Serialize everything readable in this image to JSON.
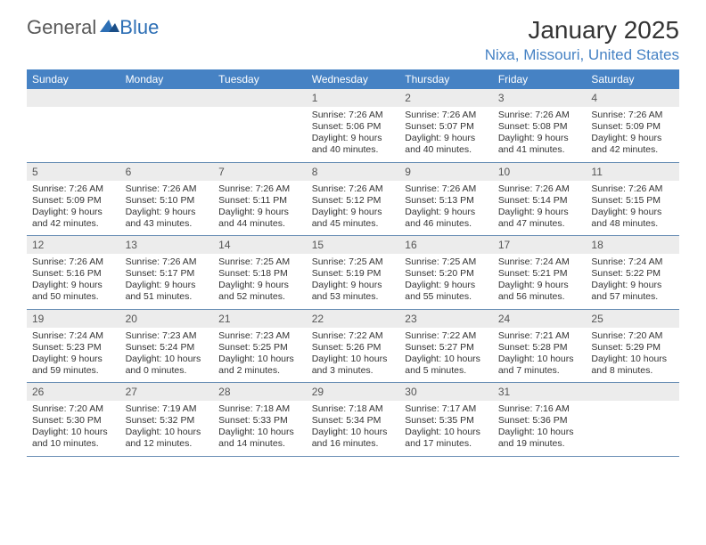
{
  "brand": {
    "part1": "General",
    "part2": "Blue"
  },
  "title": "January 2025",
  "location": "Nixa, Missouri, United States",
  "colors": {
    "header_bg": "#4682c4",
    "header_fg": "#ffffff",
    "daynum_bg": "#ececec",
    "rule": "#6a8fb5",
    "brand_blue": "#2d6fb5",
    "text": "#333333"
  },
  "daysOfWeek": [
    "Sunday",
    "Monday",
    "Tuesday",
    "Wednesday",
    "Thursday",
    "Friday",
    "Saturday"
  ],
  "weeks": [
    [
      {
        "n": "",
        "lines": []
      },
      {
        "n": "",
        "lines": []
      },
      {
        "n": "",
        "lines": []
      },
      {
        "n": "1",
        "lines": [
          "Sunrise: 7:26 AM",
          "Sunset: 5:06 PM",
          "Daylight: 9 hours",
          "and 40 minutes."
        ]
      },
      {
        "n": "2",
        "lines": [
          "Sunrise: 7:26 AM",
          "Sunset: 5:07 PM",
          "Daylight: 9 hours",
          "and 40 minutes."
        ]
      },
      {
        "n": "3",
        "lines": [
          "Sunrise: 7:26 AM",
          "Sunset: 5:08 PM",
          "Daylight: 9 hours",
          "and 41 minutes."
        ]
      },
      {
        "n": "4",
        "lines": [
          "Sunrise: 7:26 AM",
          "Sunset: 5:09 PM",
          "Daylight: 9 hours",
          "and 42 minutes."
        ]
      }
    ],
    [
      {
        "n": "5",
        "lines": [
          "Sunrise: 7:26 AM",
          "Sunset: 5:09 PM",
          "Daylight: 9 hours",
          "and 42 minutes."
        ]
      },
      {
        "n": "6",
        "lines": [
          "Sunrise: 7:26 AM",
          "Sunset: 5:10 PM",
          "Daylight: 9 hours",
          "and 43 minutes."
        ]
      },
      {
        "n": "7",
        "lines": [
          "Sunrise: 7:26 AM",
          "Sunset: 5:11 PM",
          "Daylight: 9 hours",
          "and 44 minutes."
        ]
      },
      {
        "n": "8",
        "lines": [
          "Sunrise: 7:26 AM",
          "Sunset: 5:12 PM",
          "Daylight: 9 hours",
          "and 45 minutes."
        ]
      },
      {
        "n": "9",
        "lines": [
          "Sunrise: 7:26 AM",
          "Sunset: 5:13 PM",
          "Daylight: 9 hours",
          "and 46 minutes."
        ]
      },
      {
        "n": "10",
        "lines": [
          "Sunrise: 7:26 AM",
          "Sunset: 5:14 PM",
          "Daylight: 9 hours",
          "and 47 minutes."
        ]
      },
      {
        "n": "11",
        "lines": [
          "Sunrise: 7:26 AM",
          "Sunset: 5:15 PM",
          "Daylight: 9 hours",
          "and 48 minutes."
        ]
      }
    ],
    [
      {
        "n": "12",
        "lines": [
          "Sunrise: 7:26 AM",
          "Sunset: 5:16 PM",
          "Daylight: 9 hours",
          "and 50 minutes."
        ]
      },
      {
        "n": "13",
        "lines": [
          "Sunrise: 7:26 AM",
          "Sunset: 5:17 PM",
          "Daylight: 9 hours",
          "and 51 minutes."
        ]
      },
      {
        "n": "14",
        "lines": [
          "Sunrise: 7:25 AM",
          "Sunset: 5:18 PM",
          "Daylight: 9 hours",
          "and 52 minutes."
        ]
      },
      {
        "n": "15",
        "lines": [
          "Sunrise: 7:25 AM",
          "Sunset: 5:19 PM",
          "Daylight: 9 hours",
          "and 53 minutes."
        ]
      },
      {
        "n": "16",
        "lines": [
          "Sunrise: 7:25 AM",
          "Sunset: 5:20 PM",
          "Daylight: 9 hours",
          "and 55 minutes."
        ]
      },
      {
        "n": "17",
        "lines": [
          "Sunrise: 7:24 AM",
          "Sunset: 5:21 PM",
          "Daylight: 9 hours",
          "and 56 minutes."
        ]
      },
      {
        "n": "18",
        "lines": [
          "Sunrise: 7:24 AM",
          "Sunset: 5:22 PM",
          "Daylight: 9 hours",
          "and 57 minutes."
        ]
      }
    ],
    [
      {
        "n": "19",
        "lines": [
          "Sunrise: 7:24 AM",
          "Sunset: 5:23 PM",
          "Daylight: 9 hours",
          "and 59 minutes."
        ]
      },
      {
        "n": "20",
        "lines": [
          "Sunrise: 7:23 AM",
          "Sunset: 5:24 PM",
          "Daylight: 10 hours",
          "and 0 minutes."
        ]
      },
      {
        "n": "21",
        "lines": [
          "Sunrise: 7:23 AM",
          "Sunset: 5:25 PM",
          "Daylight: 10 hours",
          "and 2 minutes."
        ]
      },
      {
        "n": "22",
        "lines": [
          "Sunrise: 7:22 AM",
          "Sunset: 5:26 PM",
          "Daylight: 10 hours",
          "and 3 minutes."
        ]
      },
      {
        "n": "23",
        "lines": [
          "Sunrise: 7:22 AM",
          "Sunset: 5:27 PM",
          "Daylight: 10 hours",
          "and 5 minutes."
        ]
      },
      {
        "n": "24",
        "lines": [
          "Sunrise: 7:21 AM",
          "Sunset: 5:28 PM",
          "Daylight: 10 hours",
          "and 7 minutes."
        ]
      },
      {
        "n": "25",
        "lines": [
          "Sunrise: 7:20 AM",
          "Sunset: 5:29 PM",
          "Daylight: 10 hours",
          "and 8 minutes."
        ]
      }
    ],
    [
      {
        "n": "26",
        "lines": [
          "Sunrise: 7:20 AM",
          "Sunset: 5:30 PM",
          "Daylight: 10 hours",
          "and 10 minutes."
        ]
      },
      {
        "n": "27",
        "lines": [
          "Sunrise: 7:19 AM",
          "Sunset: 5:32 PM",
          "Daylight: 10 hours",
          "and 12 minutes."
        ]
      },
      {
        "n": "28",
        "lines": [
          "Sunrise: 7:18 AM",
          "Sunset: 5:33 PM",
          "Daylight: 10 hours",
          "and 14 minutes."
        ]
      },
      {
        "n": "29",
        "lines": [
          "Sunrise: 7:18 AM",
          "Sunset: 5:34 PM",
          "Daylight: 10 hours",
          "and 16 minutes."
        ]
      },
      {
        "n": "30",
        "lines": [
          "Sunrise: 7:17 AM",
          "Sunset: 5:35 PM",
          "Daylight: 10 hours",
          "and 17 minutes."
        ]
      },
      {
        "n": "31",
        "lines": [
          "Sunrise: 7:16 AM",
          "Sunset: 5:36 PM",
          "Daylight: 10 hours",
          "and 19 minutes."
        ]
      },
      {
        "n": "",
        "lines": []
      }
    ]
  ]
}
